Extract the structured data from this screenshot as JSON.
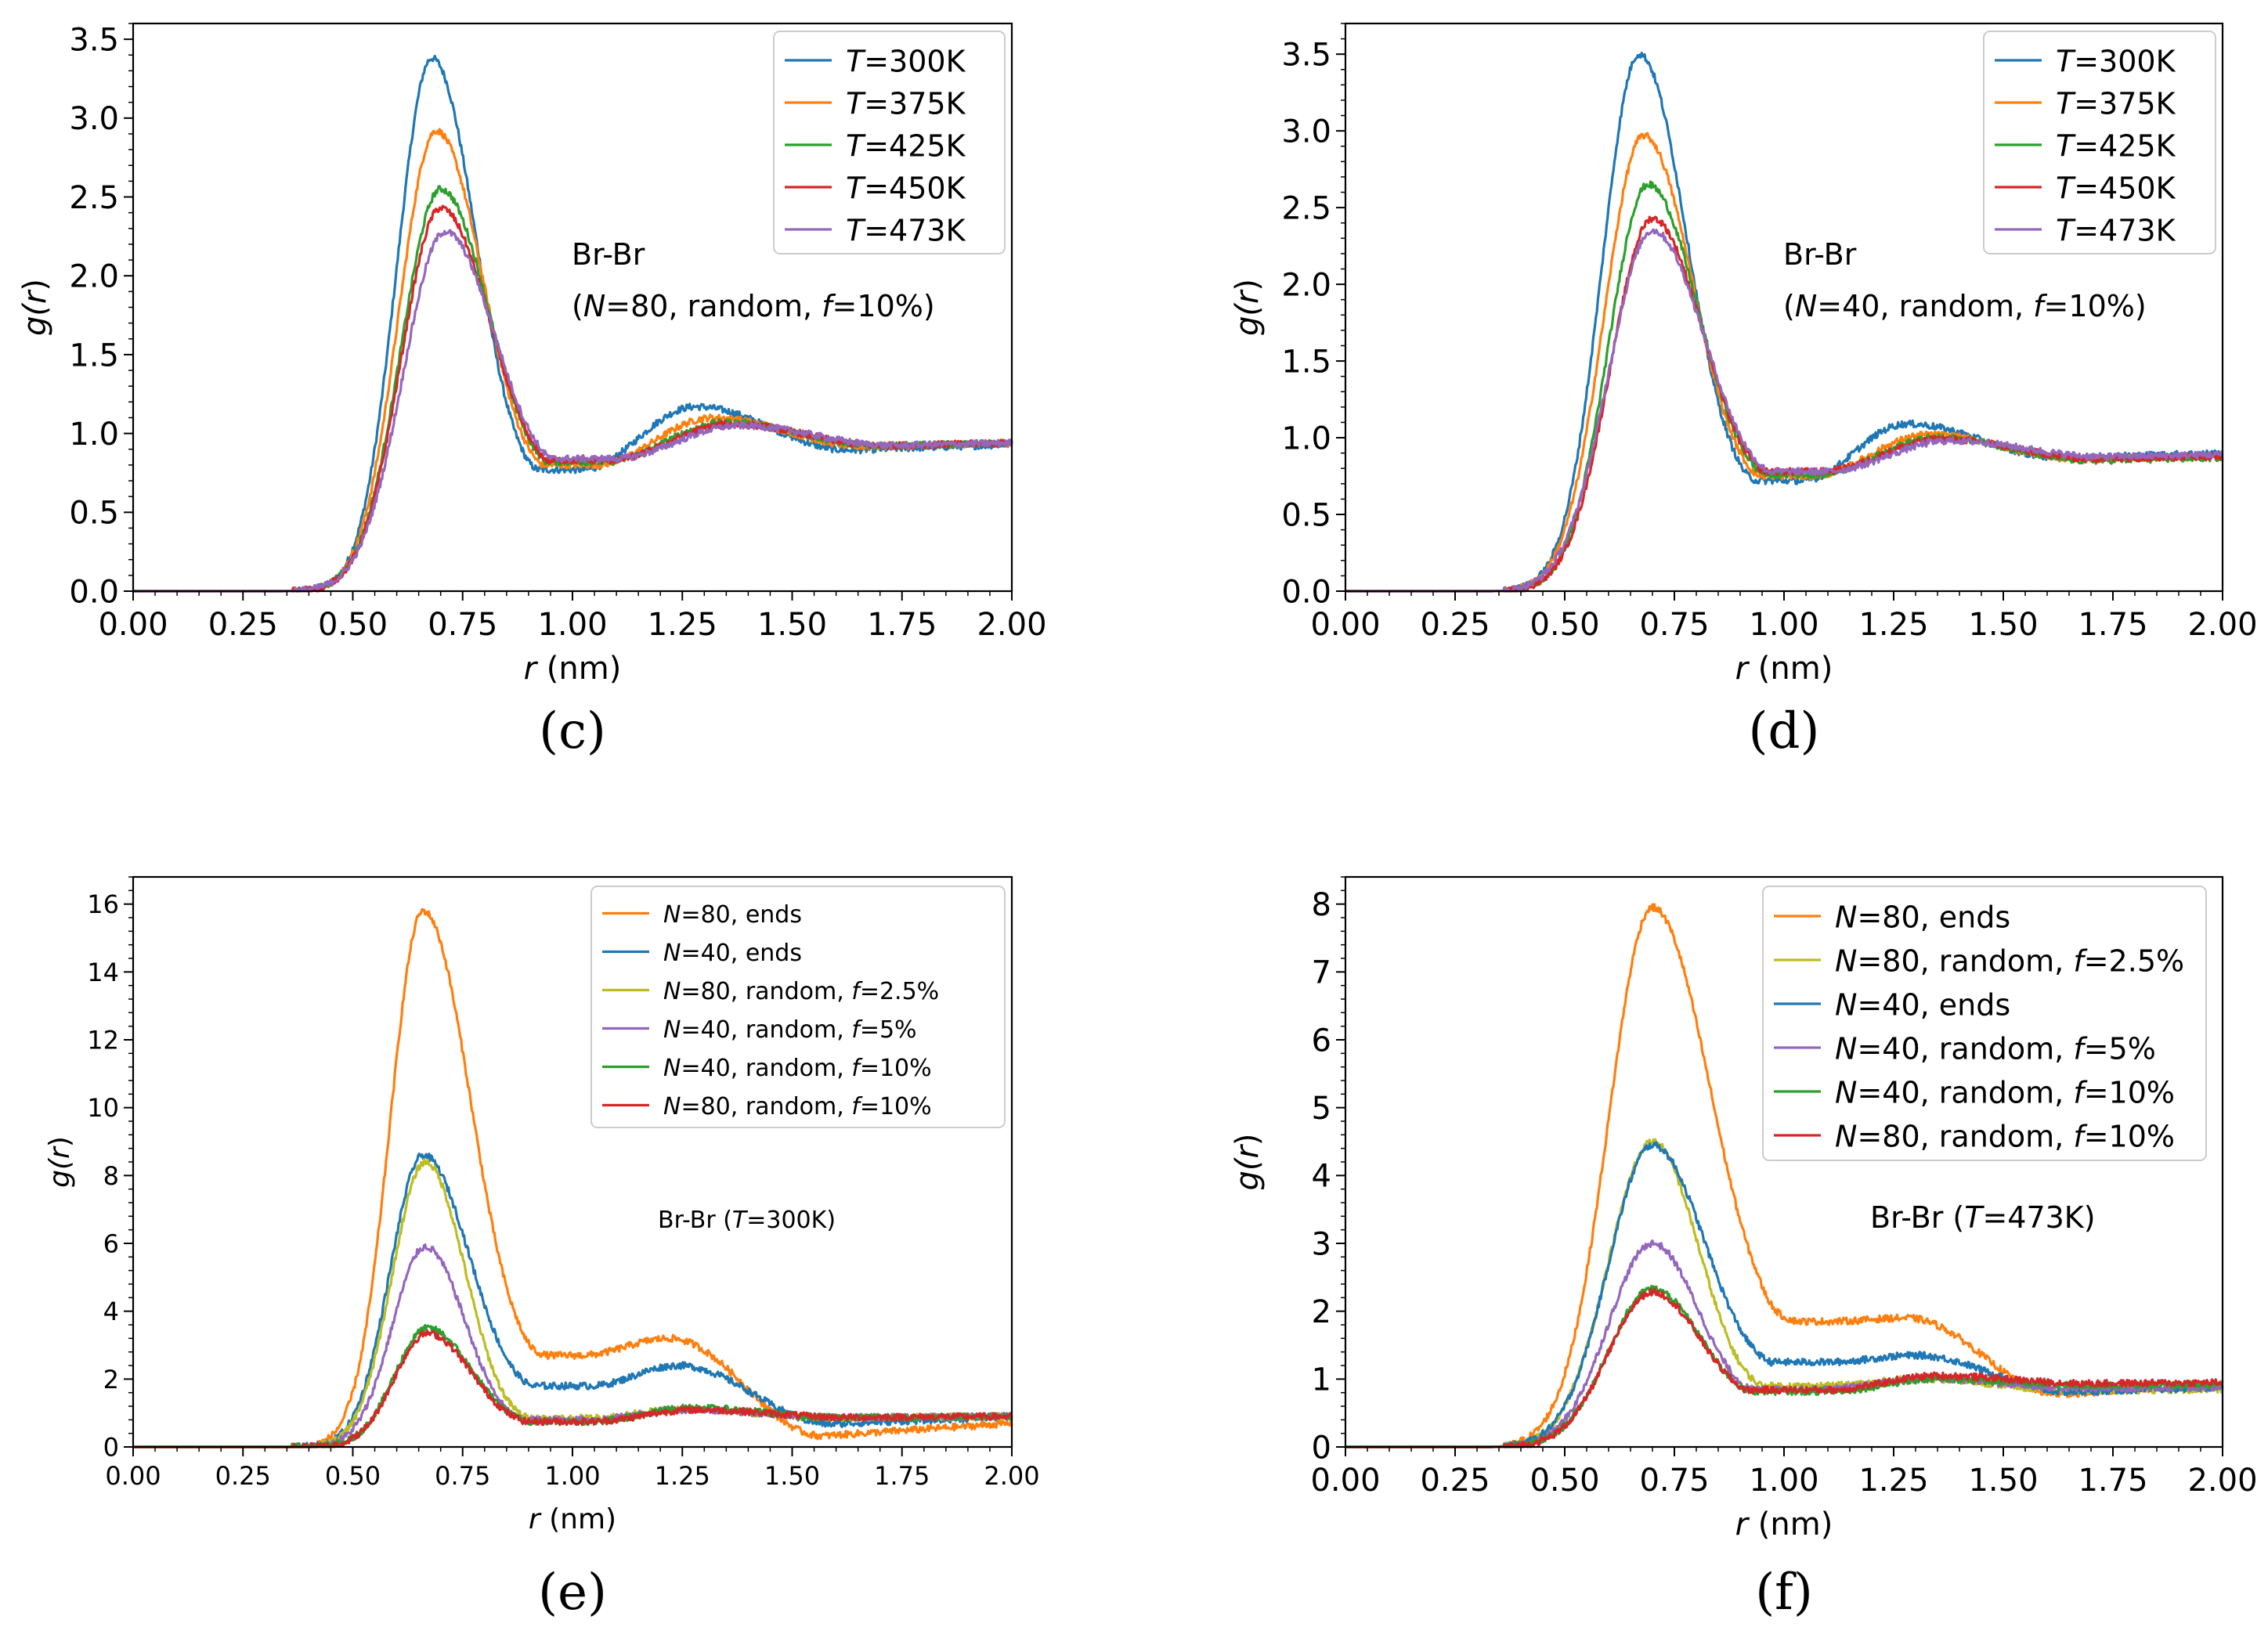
{
  "colors": {
    "tab_blue": "#1f77b4",
    "tab_orange": "#ff7f0e",
    "tab_green": "#2ca02c",
    "tab_red": "#d62728",
    "tab_purple": "#9467bd",
    "tab_olive": "#bcbd22"
  },
  "chart_data": [
    {
      "type": "line",
      "panel_label": "(c)",
      "xlabel_var": "r",
      "xlabel_unit": " (nm)",
      "ylabel_fn": "g(",
      "ylabel_var": "r",
      "ylabel_close": ")",
      "xlim": [
        0,
        2
      ],
      "ylim": [
        0,
        3.6
      ],
      "xticks": [
        0,
        0.25,
        0.5,
        0.75,
        1.0,
        1.25,
        1.5,
        1.75,
        2.0
      ],
      "xtick_labels": [
        "0.00",
        "0.25",
        "0.50",
        "0.75",
        "1.00",
        "1.25",
        "1.50",
        "1.75",
        "2.00"
      ],
      "yticks": [
        0,
        0.5,
        1.0,
        1.5,
        2.0,
        2.5,
        3.0,
        3.5
      ],
      "ytick_labels": [
        "0.0",
        "0.5",
        "1.0",
        "1.5",
        "2.0",
        "2.5",
        "3.0",
        "3.5"
      ],
      "annotation": {
        "line1": "Br-Br",
        "line2_parts": [
          "(",
          "N",
          "=80, random, ",
          "f",
          "=10%)"
        ]
      },
      "legend_position": "top-right",
      "series": [
        {
          "legend_var": "T",
          "legend_rest": "=300K",
          "color": "#1f77b4",
          "peak": 3.38,
          "r0": 0.68,
          "w1": 0.08,
          "w2": 0.14,
          "min_r": 1.02,
          "min_v": 0.77,
          "peak2_r": 1.28,
          "peak2_v": 1.17,
          "end_v": 0.93
        },
        {
          "legend_var": "T",
          "legend_rest": "=375K",
          "color": "#ff7f0e",
          "peak": 2.92,
          "r0": 0.69,
          "w1": 0.085,
          "w2": 0.15,
          "min_r": 1.05,
          "min_v": 0.8,
          "peak2_r": 1.32,
          "peak2_v": 1.1,
          "end_v": 0.94
        },
        {
          "legend_var": "T",
          "legend_rest": "=425K",
          "color": "#2ca02c",
          "peak": 2.55,
          "r0": 0.7,
          "w1": 0.09,
          "w2": 0.16,
          "min_r": 1.07,
          "min_v": 0.82,
          "peak2_r": 1.35,
          "peak2_v": 1.07,
          "end_v": 0.94
        },
        {
          "legend_var": "T",
          "legend_rest": "=450K",
          "color": "#d62728",
          "peak": 2.43,
          "r0": 0.7,
          "w1": 0.09,
          "w2": 0.165,
          "min_r": 1.08,
          "min_v": 0.83,
          "peak2_r": 1.36,
          "peak2_v": 1.06,
          "end_v": 0.94
        },
        {
          "legend_var": "T",
          "legend_rest": "=473K",
          "color": "#9467bd",
          "peak": 2.28,
          "r0": 0.71,
          "w1": 0.095,
          "w2": 0.17,
          "min_r": 1.09,
          "min_v": 0.84,
          "peak2_r": 1.38,
          "peak2_v": 1.05,
          "end_v": 0.94
        }
      ]
    },
    {
      "type": "line",
      "panel_label": "(d)",
      "xlabel_var": "r",
      "xlabel_unit": " (nm)",
      "ylabel_fn": "g(",
      "ylabel_var": "r",
      "ylabel_close": ")",
      "xlim": [
        0,
        2
      ],
      "ylim": [
        0,
        3.7
      ],
      "xticks": [
        0,
        0.25,
        0.5,
        0.75,
        1.0,
        1.25,
        1.5,
        1.75,
        2.0
      ],
      "xtick_labels": [
        "0.00",
        "0.25",
        "0.50",
        "0.75",
        "1.00",
        "1.25",
        "1.50",
        "1.75",
        "2.00"
      ],
      "yticks": [
        0,
        0.5,
        1.0,
        1.5,
        2.0,
        2.5,
        3.0,
        3.5
      ],
      "ytick_labels": [
        "0.0",
        "0.5",
        "1.0",
        "1.5",
        "2.0",
        "2.5",
        "3.0",
        "3.5"
      ],
      "annotation": {
        "line1": "Br-Br",
        "line2_parts": [
          "(",
          "N",
          "=40, random, ",
          "f",
          "=10%)"
        ]
      },
      "legend_position": "top-right",
      "series": [
        {
          "legend_var": "T",
          "legend_rest": "=300K",
          "color": "#1f77b4",
          "peak": 3.5,
          "r0": 0.67,
          "w1": 0.085,
          "w2": 0.15,
          "min_r": 1.04,
          "min_v": 0.72,
          "peak2_r": 1.28,
          "peak2_v": 1.09,
          "end_v": 0.9
        },
        {
          "legend_var": "T",
          "legend_rest": "=375K",
          "color": "#ff7f0e",
          "peak": 2.97,
          "r0": 0.68,
          "w1": 0.09,
          "w2": 0.16,
          "min_r": 1.06,
          "min_v": 0.75,
          "peak2_r": 1.33,
          "peak2_v": 1.02,
          "end_v": 0.88
        },
        {
          "legend_var": "T",
          "legend_rest": "=425K",
          "color": "#2ca02c",
          "peak": 2.65,
          "r0": 0.69,
          "w1": 0.09,
          "w2": 0.17,
          "min_r": 1.07,
          "min_v": 0.76,
          "peak2_r": 1.35,
          "peak2_v": 1.0,
          "end_v": 0.87
        },
        {
          "legend_var": "T",
          "legend_rest": "=450K",
          "color": "#d62728",
          "peak": 2.43,
          "r0": 0.7,
          "w1": 0.095,
          "w2": 0.17,
          "min_r": 1.08,
          "min_v": 0.78,
          "peak2_r": 1.36,
          "peak2_v": 0.99,
          "end_v": 0.88
        },
        {
          "legend_var": "T",
          "legend_rest": "=473K",
          "color": "#9467bd",
          "peak": 2.35,
          "r0": 0.7,
          "w1": 0.1,
          "w2": 0.18,
          "min_r": 1.09,
          "min_v": 0.78,
          "peak2_r": 1.38,
          "peak2_v": 0.98,
          "end_v": 0.89
        }
      ]
    },
    {
      "type": "line",
      "panel_label": "(e)",
      "xlabel_var": "r",
      "xlabel_unit": " (nm)",
      "ylabel_fn": "g(",
      "ylabel_var": "r",
      "ylabel_close": ")",
      "xlim": [
        0,
        2
      ],
      "ylim": [
        0,
        16.8
      ],
      "xticks": [
        0,
        0.25,
        0.5,
        0.75,
        1.0,
        1.25,
        1.5,
        1.75,
        2.0
      ],
      "xtick_labels": [
        "0.00",
        "0.25",
        "0.50",
        "0.75",
        "1.00",
        "1.25",
        "1.50",
        "1.75",
        "2.00"
      ],
      "yticks": [
        0,
        2,
        4,
        6,
        8,
        10,
        12,
        14,
        16
      ],
      "ytick_labels": [
        "0",
        "2",
        "4",
        "6",
        "8",
        "10",
        "12",
        "14",
        "16"
      ],
      "annotation": {
        "line1_parts": [
          "Br-Br (",
          "T",
          "=300K)"
        ]
      },
      "legend_position": "top-right",
      "series": [
        {
          "legend_parts": [
            "N",
            "=80, ends"
          ],
          "color": "#ff7f0e",
          "peak": 15.8,
          "r0": 0.66,
          "w1": 0.075,
          "w2": 0.15,
          "min_r": 1.02,
          "min_v": 2.7,
          "peak2_r": 1.22,
          "peak2_v": 3.2,
          "end_v": 0.7
        },
        {
          "legend_parts": [
            "N",
            "=40, ends"
          ],
          "color": "#1f77b4",
          "peak": 8.6,
          "r0": 0.66,
          "w1": 0.075,
          "w2": 0.14,
          "min_r": 1.04,
          "min_v": 1.8,
          "peak2_r": 1.24,
          "peak2_v": 2.4,
          "end_v": 0.9
        },
        {
          "legend_parts": [
            "N",
            "=80, random, ",
            "f",
            "=2.5%"
          ],
          "color": "#bcbd22",
          "peak": 8.4,
          "r0": 0.665,
          "w1": 0.075,
          "w2": 0.11,
          "min_r": 1.03,
          "min_v": 0.85,
          "peak2_r": 1.25,
          "peak2_v": 1.1,
          "end_v": 0.9
        },
        {
          "legend_parts": [
            "N",
            "=40, random, ",
            "f",
            "=5%"
          ],
          "color": "#9467bd",
          "peak": 5.9,
          "r0": 0.665,
          "w1": 0.075,
          "w2": 0.11,
          "min_r": 1.03,
          "min_v": 0.8,
          "peak2_r": 1.26,
          "peak2_v": 1.1,
          "end_v": 0.9
        },
        {
          "legend_parts": [
            "N",
            "=40, random, ",
            "f",
            "=10%"
          ],
          "color": "#2ca02c",
          "peak": 3.5,
          "r0": 0.67,
          "w1": 0.075,
          "w2": 0.13,
          "min_r": 1.04,
          "min_v": 0.75,
          "peak2_r": 1.27,
          "peak2_v": 1.15,
          "end_v": 0.9
        },
        {
          "legend_parts": [
            "N",
            "=80, random, ",
            "f",
            "=10%"
          ],
          "color": "#d62728",
          "peak": 3.35,
          "r0": 0.67,
          "w1": 0.075,
          "w2": 0.13,
          "min_r": 1.04,
          "min_v": 0.75,
          "peak2_r": 1.28,
          "peak2_v": 1.1,
          "end_v": 0.9
        }
      ]
    },
    {
      "type": "line",
      "panel_label": "(f)",
      "xlabel_var": "r",
      "xlabel_unit": " (nm)",
      "ylabel_fn": "g(",
      "ylabel_var": "r",
      "ylabel_close": ")",
      "xlim": [
        0,
        2
      ],
      "ylim": [
        0,
        8.4
      ],
      "xticks": [
        0,
        0.25,
        0.5,
        0.75,
        1.0,
        1.25,
        1.5,
        1.75,
        2.0
      ],
      "xtick_labels": [
        "0.00",
        "0.25",
        "0.50",
        "0.75",
        "1.00",
        "1.25",
        "1.50",
        "1.75",
        "2.00"
      ],
      "yticks": [
        0,
        1,
        2,
        3,
        4,
        5,
        6,
        7,
        8
      ],
      "ytick_labels": [
        "0",
        "1",
        "2",
        "3",
        "4",
        "5",
        "6",
        "7",
        "8"
      ],
      "annotation": {
        "line1_parts": [
          "Br-Br (",
          "T",
          "=473K)"
        ]
      },
      "legend_position": "top-left",
      "series": [
        {
          "legend_parts": [
            "N",
            "=80, ends"
          ],
          "color": "#ff7f0e",
          "peak": 7.95,
          "r0": 0.7,
          "w1": 0.1,
          "w2": 0.2,
          "min_r": 1.1,
          "min_v": 1.85,
          "peak2_r": 1.28,
          "peak2_v": 1.9,
          "end_v": 0.92
        },
        {
          "legend_parts": [
            "N",
            "=80, random, ",
            "f",
            "=2.5%"
          ],
          "color": "#bcbd22",
          "peak": 4.5,
          "r0": 0.7,
          "w1": 0.1,
          "w2": 0.14,
          "min_r": 1.08,
          "min_v": 0.9,
          "peak2_r": 1.32,
          "peak2_v": 1.0,
          "end_v": 0.85
        },
        {
          "legend_parts": [
            "N",
            "=40, ends"
          ],
          "color": "#1f77b4",
          "peak": 4.45,
          "r0": 0.7,
          "w1": 0.1,
          "w2": 0.17,
          "min_r": 1.1,
          "min_v": 1.25,
          "peak2_r": 1.3,
          "peak2_v": 1.35,
          "end_v": 0.88
        },
        {
          "legend_parts": [
            "N",
            "=40, random, ",
            "f",
            "=5%"
          ],
          "color": "#9467bd",
          "peak": 3.0,
          "r0": 0.7,
          "w1": 0.1,
          "w2": 0.14,
          "min_r": 1.08,
          "min_v": 0.85,
          "peak2_r": 1.33,
          "peak2_v": 1.0,
          "end_v": 0.88
        },
        {
          "legend_parts": [
            "N",
            "=40, random, ",
            "f",
            "=10%"
          ],
          "color": "#2ca02c",
          "peak": 2.33,
          "r0": 0.7,
          "w1": 0.1,
          "w2": 0.15,
          "min_r": 1.1,
          "min_v": 0.82,
          "peak2_r": 1.35,
          "peak2_v": 1.0,
          "end_v": 0.92
        },
        {
          "legend_parts": [
            "N",
            "=80, random, ",
            "f",
            "=10%"
          ],
          "color": "#d62728",
          "peak": 2.28,
          "r0": 0.7,
          "w1": 0.1,
          "w2": 0.15,
          "min_r": 1.1,
          "min_v": 0.84,
          "peak2_r": 1.35,
          "peak2_v": 1.05,
          "end_v": 0.95
        }
      ]
    }
  ]
}
